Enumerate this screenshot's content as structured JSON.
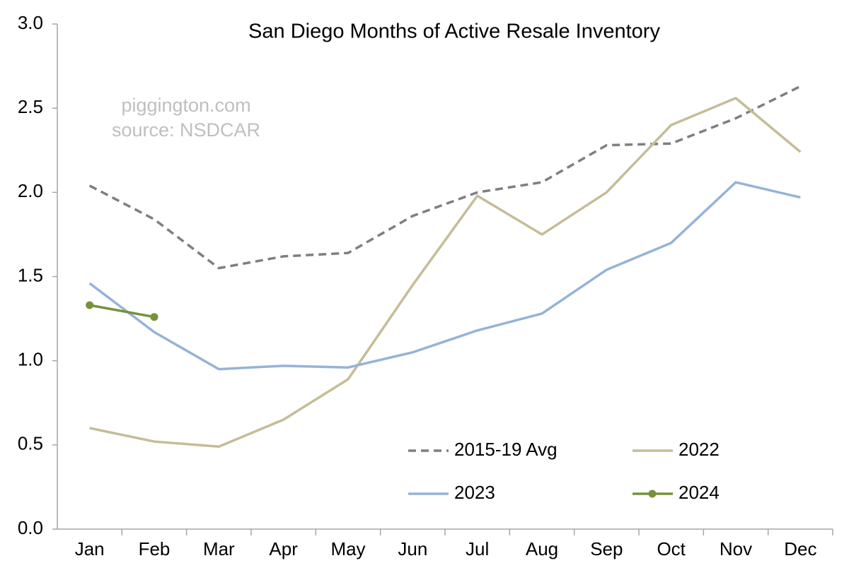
{
  "chart_data": {
    "type": "line",
    "title": "San Diego Months of Active Resale Inventory",
    "annotations": [
      "piggington.com",
      "source: NSDCAR"
    ],
    "categories": [
      "Jan",
      "Feb",
      "Mar",
      "Apr",
      "May",
      "Jun",
      "Jul",
      "Aug",
      "Sep",
      "Oct",
      "Nov",
      "Dec"
    ],
    "series": [
      {
        "name": "2015-19 Avg",
        "color": "#7f7f7f",
        "dashed": true,
        "values": [
          2.04,
          1.84,
          1.55,
          1.62,
          1.64,
          1.86,
          2.0,
          2.06,
          2.28,
          2.29,
          2.44,
          2.63
        ]
      },
      {
        "name": "2022",
        "color": "#c4bd97",
        "values": [
          0.6,
          0.52,
          0.49,
          0.65,
          0.89,
          1.45,
          1.98,
          1.75,
          2.0,
          2.4,
          2.56,
          2.24
        ]
      },
      {
        "name": "2023",
        "color": "#95b3d7",
        "values": [
          1.46,
          1.17,
          0.95,
          0.97,
          0.96,
          1.05,
          1.18,
          1.28,
          1.54,
          1.7,
          2.06,
          1.97
        ]
      },
      {
        "name": "2024",
        "color": "#76923c",
        "markers": true,
        "values": [
          1.33,
          1.26,
          null,
          null,
          null,
          null,
          null,
          null,
          null,
          null,
          null,
          null
        ]
      }
    ],
    "ylim": [
      0,
      3
    ],
    "yticks": [
      {
        "value": 0,
        "label": "0.0"
      },
      0.5,
      {
        "value": 1,
        "label": "1.0"
      },
      1.5,
      {
        "value": 2,
        "label": "2.0"
      },
      2.5,
      {
        "value": 3,
        "label": "3.0"
      }
    ],
    "grid": false,
    "legend": "lower right"
  }
}
